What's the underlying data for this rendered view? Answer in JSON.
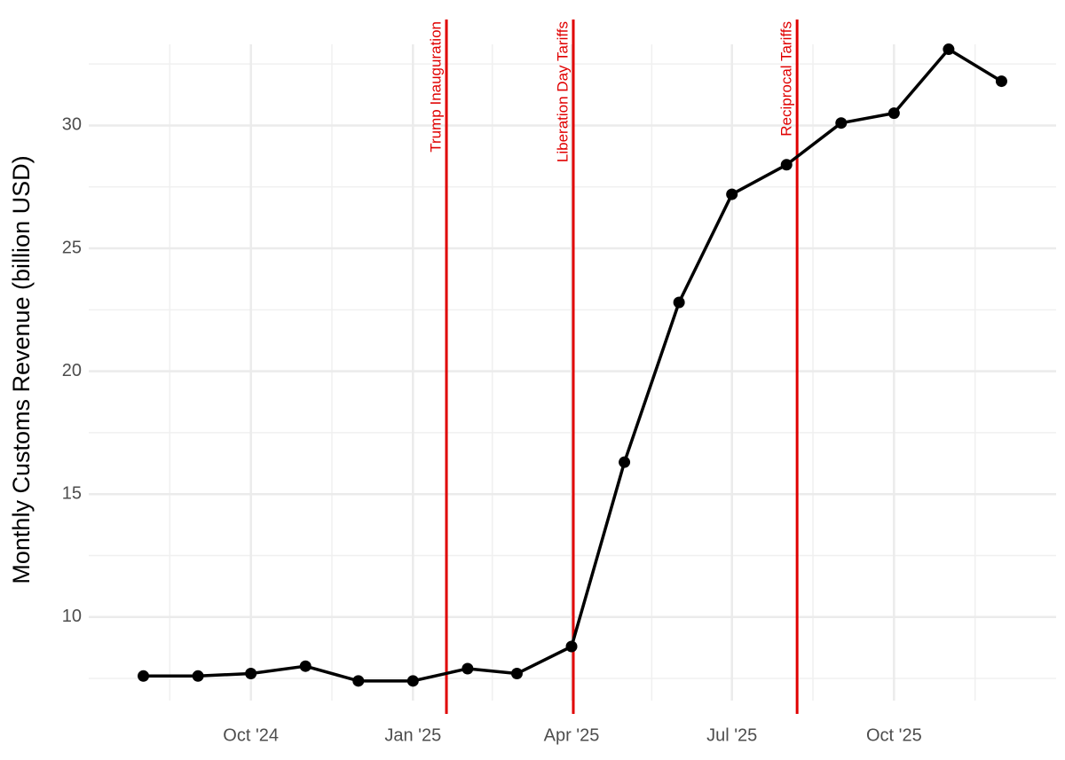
{
  "chart_data": {
    "type": "line",
    "ylabel": "Monthly Customs Revenue (billion USD)",
    "x": [
      "2024-08",
      "2024-09",
      "2024-10",
      "2024-11",
      "2024-12",
      "2025-01",
      "2025-02",
      "2025-03",
      "2025-04",
      "2025-05",
      "2025-06",
      "2025-07",
      "2025-08",
      "2025-09",
      "2025-10",
      "2025-11",
      "2025-12"
    ],
    "series": [
      {
        "color": "#000000",
        "values": [
          7.6,
          7.6,
          7.7,
          8.0,
          7.4,
          7.4,
          7.9,
          7.7,
          8.8,
          16.3,
          22.8,
          27.2,
          28.4,
          30.1,
          30.5,
          33.1,
          31.8
        ]
      }
    ],
    "xlim": [
      "2024-07",
      "2026-01"
    ],
    "xticks": [
      {
        "value": "2024-10",
        "label": "Oct '24"
      },
      {
        "value": "2025-01",
        "label": "Jan '25"
      },
      {
        "value": "2025-04",
        "label": "Apr '25"
      },
      {
        "value": "2025-07",
        "label": "Jul '25"
      },
      {
        "value": "2025-10",
        "label": "Oct '25"
      }
    ],
    "ylim": [
      6.6,
      33.3
    ],
    "yticks": [
      10,
      15,
      20,
      25,
      30
    ],
    "grid": true,
    "annotations": [
      {
        "x": "2025-01-20",
        "text": "Trump Inauguration",
        "color": "#e00000"
      },
      {
        "x": "2025-04-02",
        "text": "Liberation Day Tariffs",
        "color": "#e00000"
      },
      {
        "x": "2025-08-07",
        "text": "Reciprocal Tariffs",
        "color": "#e00000"
      }
    ]
  }
}
